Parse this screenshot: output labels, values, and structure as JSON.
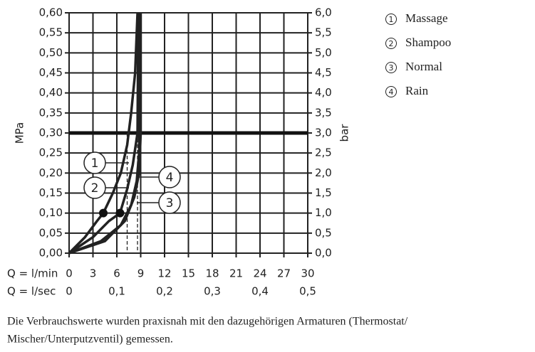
{
  "chart_data": {
    "type": "line",
    "ylabel": "MPa",
    "y2label": "bar",
    "xlabel": "Q = l/min",
    "x2label": "Q = l/sec",
    "xlim": [
      0,
      30
    ],
    "xticks": [
      0,
      3,
      6,
      9,
      12,
      15,
      18,
      21,
      24,
      27,
      30
    ],
    "x2lim": [
      0,
      0.5
    ],
    "x2ticks": [
      0,
      {
        "value": 0.1,
        "label": "0,1"
      },
      {
        "value": 0.2,
        "label": "0,2"
      },
      {
        "value": 0.3,
        "label": "0,3"
      },
      {
        "value": 0.4,
        "label": "0,4"
      },
      {
        "value": 0.5,
        "label": "0,5"
      }
    ],
    "ylim": [
      0,
      0.6
    ],
    "yticks": [
      {
        "value": 0,
        "label": "0,00"
      },
      {
        "value": 0.05,
        "label": "0,05"
      },
      {
        "value": 0.1,
        "label": "0,10"
      },
      {
        "value": 0.15,
        "label": "0,15"
      },
      {
        "value": 0.2,
        "label": "0,20"
      },
      {
        "value": 0.25,
        "label": "0,25"
      },
      {
        "value": 0.3,
        "label": "0,30"
      },
      {
        "value": 0.35,
        "label": "0,35"
      },
      {
        "value": 0.4,
        "label": "0,40"
      },
      {
        "value": 0.45,
        "label": "0,45"
      },
      {
        "value": 0.5,
        "label": "0,50"
      },
      {
        "value": 0.55,
        "label": "0,55"
      },
      {
        "value": 0.6,
        "label": "0,60"
      }
    ],
    "y2lim": [
      0,
      6
    ],
    "y2ticks": [
      {
        "value": 0,
        "label": "0,0"
      },
      {
        "value": 0.5,
        "label": "0,5"
      },
      {
        "value": 1,
        "label": "1,0"
      },
      {
        "value": 1.5,
        "label": "1,5"
      },
      {
        "value": 2,
        "label": "2,0"
      },
      {
        "value": 2.5,
        "label": "2,5"
      },
      {
        "value": 3,
        "label": "3,0"
      },
      {
        "value": 3.5,
        "label": "3,5"
      },
      {
        "value": 4,
        "label": "4,0"
      },
      {
        "value": 4.5,
        "label": "4,5"
      },
      {
        "value": 5,
        "label": "5,0"
      },
      {
        "value": 5.5,
        "label": "5,5"
      },
      {
        "value": 6,
        "label": "6,0"
      }
    ],
    "grid": true,
    "threshold": 0.3,
    "reference_x": [
      7.3,
      8.6
    ],
    "series": [
      {
        "label": "1",
        "name": "Massage",
        "color": "#222222",
        "x": [
          0,
          2,
          3.5,
          4.3,
          5.5,
          6.5,
          7.3,
          7.8,
          8.3,
          8.6
        ],
        "values": [
          0,
          0.04,
          0.08,
          0.1,
          0.15,
          0.2,
          0.27,
          0.35,
          0.45,
          0.6
        ],
        "marker_point": [
          4.3,
          0.1
        ]
      },
      {
        "label": "2",
        "name": "Shampoo",
        "color": "#222222",
        "x": [
          0,
          3,
          5,
          6.4,
          7.3,
          8,
          8.6,
          8.7
        ],
        "values": [
          0,
          0.04,
          0.08,
          0.1,
          0.16,
          0.22,
          0.3,
          0.6
        ],
        "marker_point": [
          6.4,
          0.1
        ]
      },
      {
        "label": "3",
        "name": "Normal",
        "color": "#222222",
        "x": [
          0,
          4,
          6.5,
          7.8,
          8.5,
          8.8,
          8.9
        ],
        "values": [
          0,
          0.03,
          0.07,
          0.12,
          0.18,
          0.25,
          0.6
        ]
      },
      {
        "label": "4",
        "name": "Rain",
        "color": "#222222",
        "x": [
          0,
          4.5,
          7,
          8.2,
          8.8,
          9,
          9
        ],
        "values": [
          0,
          0.03,
          0.08,
          0.14,
          0.2,
          0.3,
          0.6
        ]
      }
    ]
  },
  "footnote": [
    "Die Verbrauchswerte wurden praxisnah mit den dazugehörigen Armaturen (Thermostat/",
    "Mischer/Unterputzventil) gemessen."
  ]
}
